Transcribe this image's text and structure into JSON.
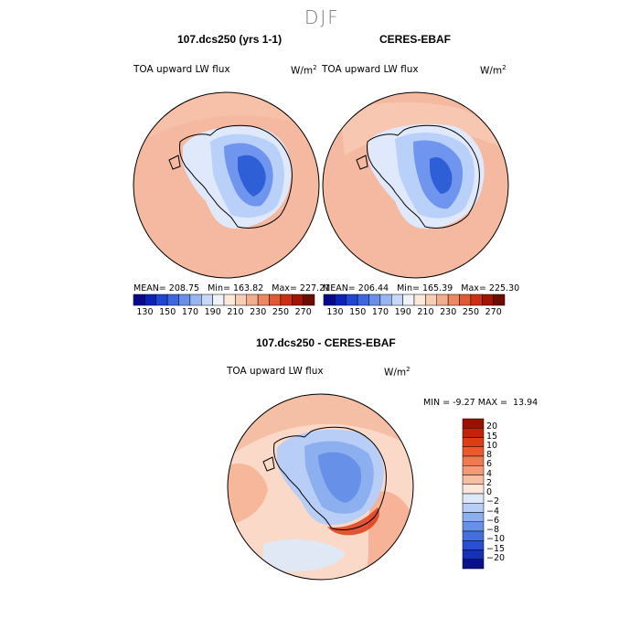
{
  "figure_title": "DJF",
  "colors": {
    "warm_fill": "#f4b9a0",
    "cold_strong": "#2f5fd6",
    "cold_mid": "#6f95ee",
    "cold_light": "#b9d0f8",
    "cold_pale": "#dfe9fb",
    "outline": "#000000"
  },
  "panels": [
    {
      "title": "107.dcs250 (yrs 1-1)",
      "field": "TOA upward LW flux",
      "units": "W/m",
      "units_exp": "2",
      "stats": {
        "mean_label": "MEAN=",
        "mean": "208.75",
        "min_label": "Min=",
        "min": "163.82",
        "max_label": "Max=",
        "max": "227.21"
      }
    },
    {
      "title": "CERES-EBAF",
      "field": "TOA upward LW flux",
      "units": "W/m",
      "units_exp": "2",
      "stats": {
        "mean_label": "MEAN=",
        "mean": "206.44",
        "min_label": "Min=",
        "min": "165.39",
        "max_label": "Max=",
        "max": "225.30"
      }
    },
    {
      "title": "107.dcs250 - CERES-EBAF",
      "field": "TOA upward LW flux",
      "units": "W/m",
      "units_exp": "2",
      "stats": {
        "min_label": "MIN =",
        "min": "-9.27",
        "max_label": "MAX =",
        "max": "13.94"
      }
    }
  ],
  "colorbar_top": {
    "labels": [
      "130",
      "150",
      "170",
      "190",
      "210",
      "230",
      "250",
      "270"
    ],
    "colors": [
      "#08088c",
      "#0b22b8",
      "#1d45d6",
      "#3d66e0",
      "#6a8fe9",
      "#9ab6f1",
      "#c7d8f7",
      "#eef3fb",
      "#fde9dc",
      "#f8cdb6",
      "#f2ad8e",
      "#eb8761",
      "#df5a33",
      "#cc2f12",
      "#a11404",
      "#6e0b02"
    ]
  },
  "colorbar_diff": {
    "labels": [
      "20",
      "15",
      "10",
      "8",
      "6",
      "4",
      "2",
      "0",
      "−2",
      "−4",
      "−6",
      "−8",
      "−10",
      "−15",
      "−20"
    ],
    "colors": [
      "#9c0f03",
      "#c32208",
      "#dc3d15",
      "#ea5a2c",
      "#f07a4f",
      "#f49a76",
      "#f8bea4",
      "#fde6da",
      "#dde8fa",
      "#b8cef6",
      "#8cb0ef",
      "#6790e8",
      "#4470df",
      "#2a4fd2",
      "#1531b8",
      "#08108c"
    ]
  }
}
